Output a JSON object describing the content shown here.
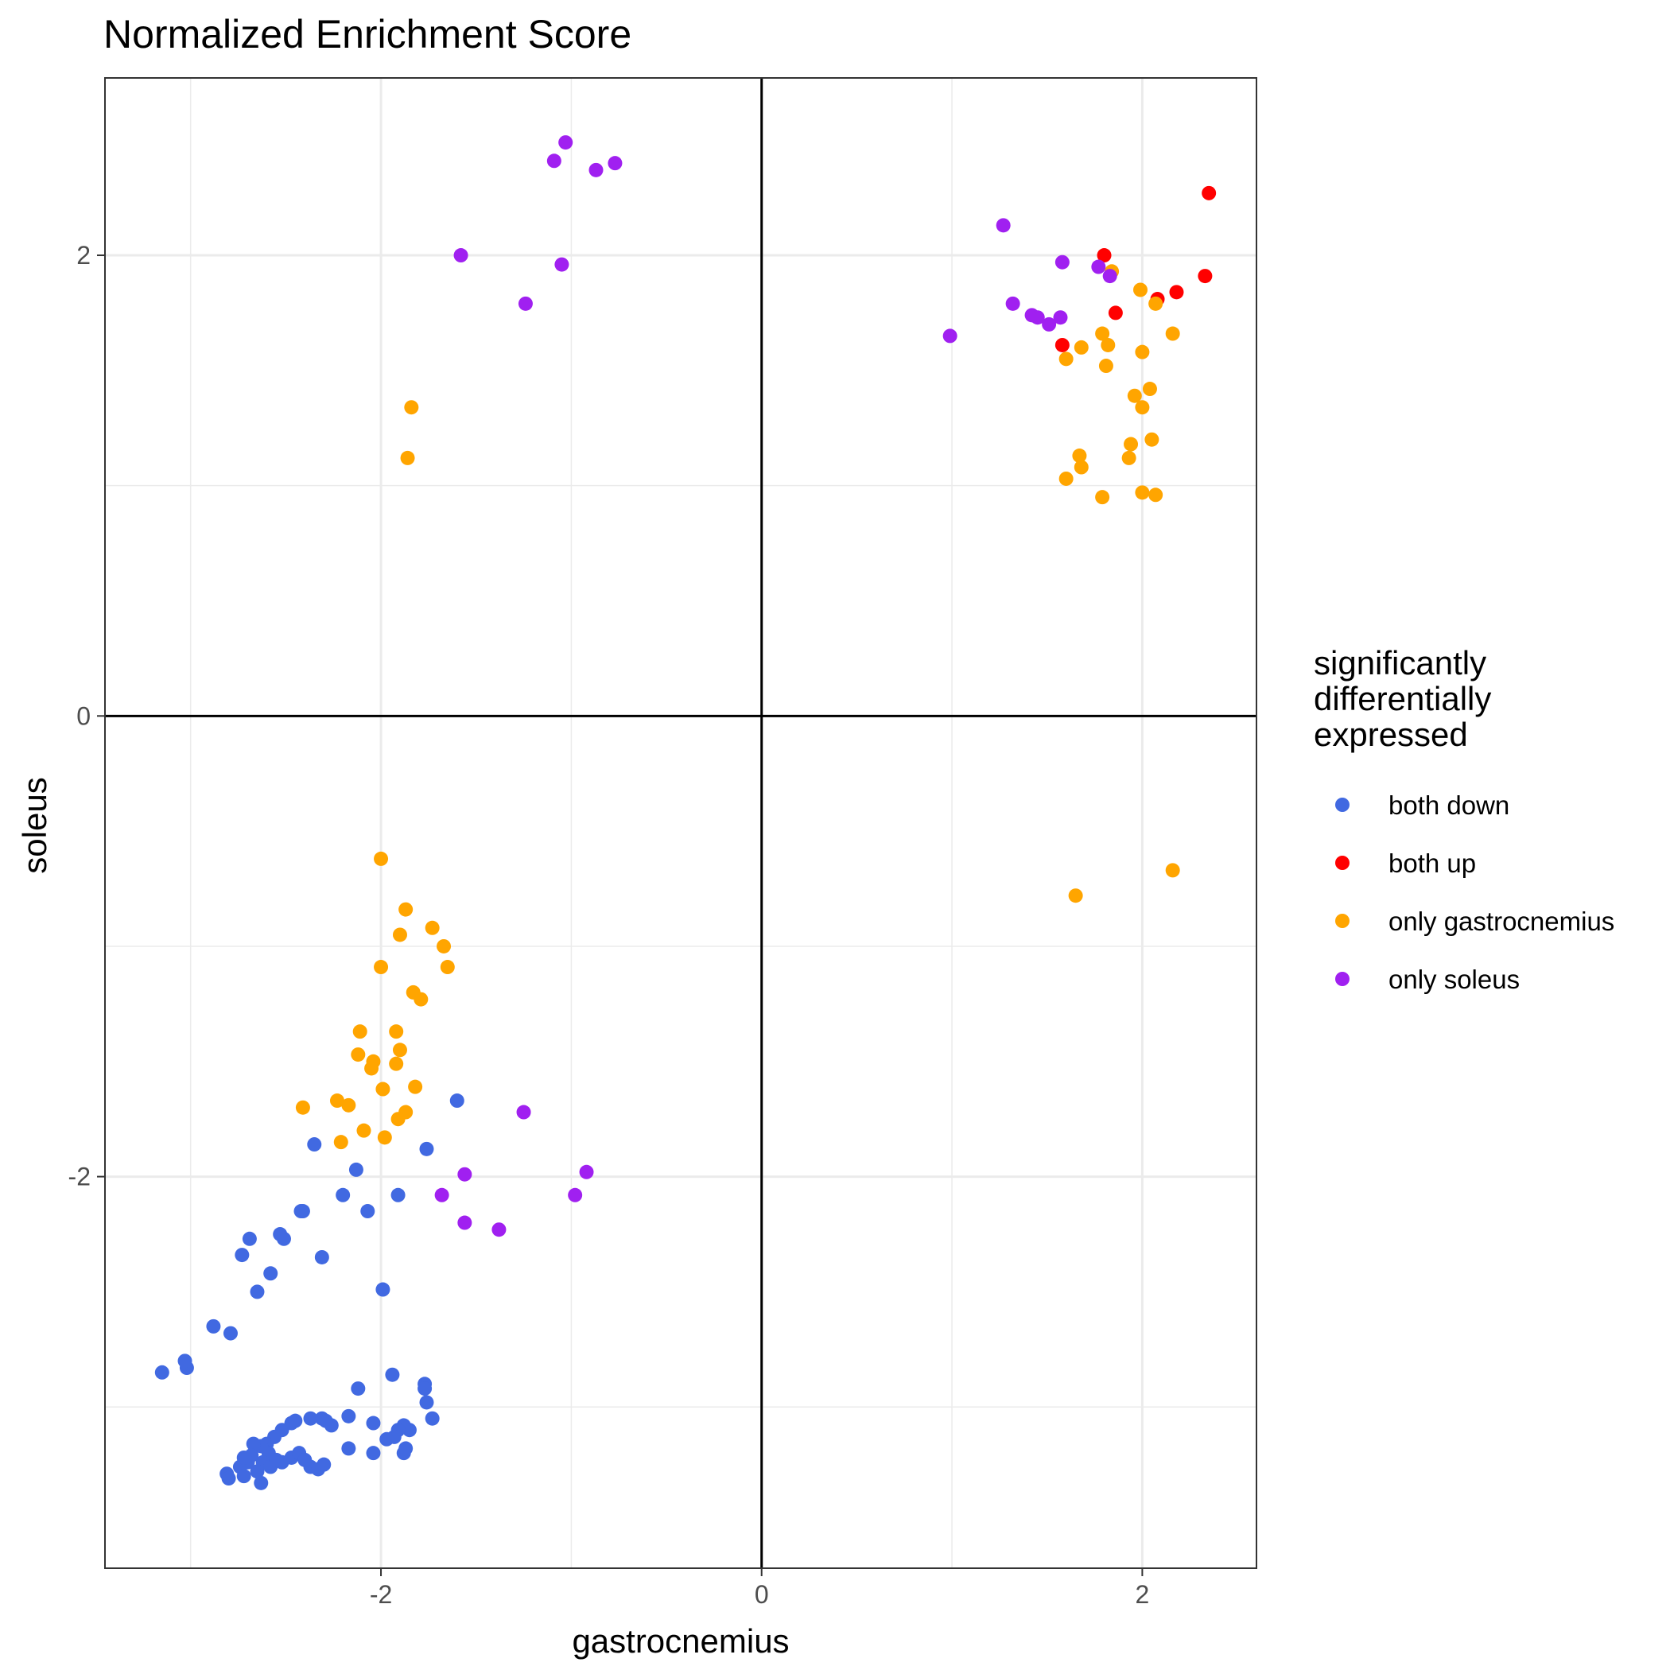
{
  "chart_data": {
    "type": "scatter",
    "title": "Normalized Enrichment Score",
    "xlabel": "gastrocnemius",
    "ylabel": "soleus",
    "xlim": [
      -3.45,
      2.6
    ],
    "ylim": [
      -3.7,
      2.77
    ],
    "xticks": [
      -2,
      0,
      2
    ],
    "yticks": [
      -2,
      0,
      2
    ],
    "grid": true,
    "reference_lines": {
      "x": 0,
      "y": 0
    },
    "legend": {
      "title": "significantly\ndifferentially\nexpressed",
      "placement": "right"
    },
    "series": [
      {
        "name": "both down",
        "color": "#4169e1",
        "points": [
          [
            -3.15,
            -2.85
          ],
          [
            -3.02,
            -2.83
          ],
          [
            -3.03,
            -2.8
          ],
          [
            -2.88,
            -2.65
          ],
          [
            -2.79,
            -2.68
          ],
          [
            -2.73,
            -2.34
          ],
          [
            -2.69,
            -2.27
          ],
          [
            -2.65,
            -2.5
          ],
          [
            -2.58,
            -2.42
          ],
          [
            -2.53,
            -2.25
          ],
          [
            -2.51,
            -2.27
          ],
          [
            -2.41,
            -2.15
          ],
          [
            -2.42,
            -2.15
          ],
          [
            -2.31,
            -2.35
          ],
          [
            -2.35,
            -1.86
          ],
          [
            -2.2,
            -2.08
          ],
          [
            -2.13,
            -1.97
          ],
          [
            -2.07,
            -2.15
          ],
          [
            -1.91,
            -2.08
          ],
          [
            -1.76,
            -1.88
          ],
          [
            -1.6,
            -1.67
          ],
          [
            -1.99,
            -2.49
          ],
          [
            -2.12,
            -2.92
          ],
          [
            -1.94,
            -2.86
          ],
          [
            -1.77,
            -2.9
          ],
          [
            -1.77,
            -2.92
          ],
          [
            -1.76,
            -2.98
          ],
          [
            -1.73,
            -3.05
          ],
          [
            -1.85,
            -3.1
          ],
          [
            -1.88,
            -3.08
          ],
          [
            -1.91,
            -3.1
          ],
          [
            -1.93,
            -3.13
          ],
          [
            -1.97,
            -3.14
          ],
          [
            -2.04,
            -3.07
          ],
          [
            -2.17,
            -3.04
          ],
          [
            -2.26,
            -3.08
          ],
          [
            -2.29,
            -3.06
          ],
          [
            -2.31,
            -3.05
          ],
          [
            -2.37,
            -3.05
          ],
          [
            -2.47,
            -3.07
          ],
          [
            -2.45,
            -3.06
          ],
          [
            -2.52,
            -3.1
          ],
          [
            -2.56,
            -3.13
          ],
          [
            -2.6,
            -3.16
          ],
          [
            -2.63,
            -3.17
          ],
          [
            -2.67,
            -3.16
          ],
          [
            -2.59,
            -3.2
          ],
          [
            -2.62,
            -3.24
          ],
          [
            -2.68,
            -3.21
          ],
          [
            -2.7,
            -3.24
          ],
          [
            -2.74,
            -3.26
          ],
          [
            -2.81,
            -3.29
          ],
          [
            -2.8,
            -3.31
          ],
          [
            -2.72,
            -3.3
          ],
          [
            -2.65,
            -3.28
          ],
          [
            -2.58,
            -3.26
          ],
          [
            -2.52,
            -3.24
          ],
          [
            -2.47,
            -3.22
          ],
          [
            -2.43,
            -3.2
          ],
          [
            -2.37,
            -3.26
          ],
          [
            -2.33,
            -3.27
          ],
          [
            -2.3,
            -3.25
          ],
          [
            -2.4,
            -3.23
          ],
          [
            -2.55,
            -3.23
          ],
          [
            -2.63,
            -3.33
          ],
          [
            -2.72,
            -3.22
          ],
          [
            -1.88,
            -3.2
          ],
          [
            -2.04,
            -3.2
          ],
          [
            -1.87,
            -3.18
          ],
          [
            -2.17,
            -3.18
          ]
        ]
      },
      {
        "name": "both up",
        "color": "#ff0000",
        "points": [
          [
            2.35,
            2.27
          ],
          [
            2.33,
            1.91
          ],
          [
            2.18,
            1.84
          ],
          [
            2.08,
            1.81
          ],
          [
            1.8,
            2.0
          ],
          [
            1.86,
            1.75
          ],
          [
            1.58,
            1.61
          ]
        ]
      },
      {
        "name": "only gastrocnemius",
        "color": "#ffa500",
        "points": [
          [
            -1.84,
            1.34
          ],
          [
            -1.86,
            1.12
          ],
          [
            -2.0,
            -0.62
          ],
          [
            -1.87,
            -0.84
          ],
          [
            -1.9,
            -0.95
          ],
          [
            -1.73,
            -0.92
          ],
          [
            -1.67,
            -1.0
          ],
          [
            -2.0,
            -1.09
          ],
          [
            -1.65,
            -1.09
          ],
          [
            -1.83,
            -1.2
          ],
          [
            -1.79,
            -1.23
          ],
          [
            -2.11,
            -1.37
          ],
          [
            -1.92,
            -1.37
          ],
          [
            -1.9,
            -1.45
          ],
          [
            -2.12,
            -1.47
          ],
          [
            -2.04,
            -1.5
          ],
          [
            -2.05,
            -1.53
          ],
          [
            -1.92,
            -1.51
          ],
          [
            -1.99,
            -1.62
          ],
          [
            -1.82,
            -1.61
          ],
          [
            -2.23,
            -1.67
          ],
          [
            -2.17,
            -1.69
          ],
          [
            -2.41,
            -1.7
          ],
          [
            -1.87,
            -1.72
          ],
          [
            -1.91,
            -1.75
          ],
          [
            -2.09,
            -1.8
          ],
          [
            -2.21,
            -1.85
          ],
          [
            -1.98,
            -1.83
          ],
          [
            1.84,
            1.93
          ],
          [
            1.99,
            1.85
          ],
          [
            2.07,
            1.79
          ],
          [
            1.79,
            1.66
          ],
          [
            1.68,
            1.6
          ],
          [
            1.82,
            1.61
          ],
          [
            2.0,
            1.58
          ],
          [
            2.16,
            1.66
          ],
          [
            1.6,
            1.55
          ],
          [
            1.81,
            1.52
          ],
          [
            2.04,
            1.42
          ],
          [
            1.96,
            1.39
          ],
          [
            2.0,
            1.34
          ],
          [
            1.94,
            1.18
          ],
          [
            2.05,
            1.2
          ],
          [
            1.93,
            1.12
          ],
          [
            1.67,
            1.13
          ],
          [
            1.68,
            1.08
          ],
          [
            1.6,
            1.03
          ],
          [
            1.79,
            0.95
          ],
          [
            2.0,
            0.97
          ],
          [
            2.07,
            0.96
          ],
          [
            2.16,
            -0.67
          ],
          [
            1.65,
            -0.78
          ]
        ]
      },
      {
        "name": "only soleus",
        "color": "#a020f0",
        "points": [
          [
            -1.03,
            2.49
          ],
          [
            -1.09,
            2.41
          ],
          [
            -0.87,
            2.37
          ],
          [
            -0.77,
            2.4
          ],
          [
            -1.58,
            2.0
          ],
          [
            -1.05,
            1.96
          ],
          [
            -1.24,
            1.79
          ],
          [
            1.27,
            2.13
          ],
          [
            1.58,
            1.97
          ],
          [
            1.77,
            1.95
          ],
          [
            1.83,
            1.91
          ],
          [
            1.32,
            1.79
          ],
          [
            1.42,
            1.74
          ],
          [
            1.45,
            1.73
          ],
          [
            1.51,
            1.7
          ],
          [
            1.57,
            1.73
          ],
          [
            0.99,
            1.65
          ],
          [
            -1.25,
            -1.72
          ],
          [
            -1.56,
            -1.99
          ],
          [
            -0.92,
            -1.98
          ],
          [
            -1.68,
            -2.08
          ],
          [
            -0.98,
            -2.08
          ],
          [
            -1.56,
            -2.2
          ],
          [
            -1.38,
            -2.23
          ]
        ]
      }
    ]
  }
}
